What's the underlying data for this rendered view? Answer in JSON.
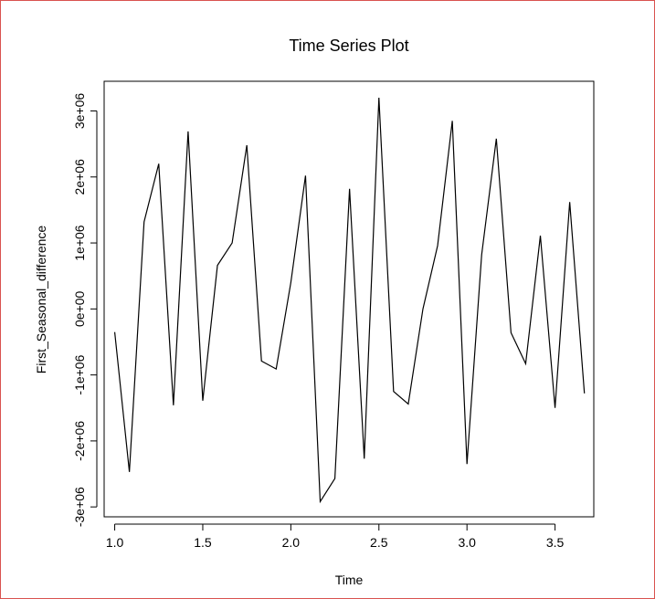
{
  "chart_data": {
    "type": "line",
    "title": "Time Series Plot",
    "xlabel": "Time",
    "ylabel": "First_Seasonal_difference",
    "xlim": [
      0.94,
      3.72
    ],
    "ylim": [
      -3150000,
      3450000
    ],
    "x_ticks": [
      {
        "value": 1.0,
        "label": "1.0"
      },
      {
        "value": 1.5,
        "label": "1.5"
      },
      {
        "value": 2.0,
        "label": "2.0"
      },
      {
        "value": 2.5,
        "label": "2.5"
      },
      {
        "value": 3.0,
        "label": "3.0"
      },
      {
        "value": 3.5,
        "label": "3.5"
      }
    ],
    "y_ticks": [
      {
        "value": -3000000,
        "label": "-3e+06"
      },
      {
        "value": -2000000,
        "label": "-2e+06"
      },
      {
        "value": -1000000,
        "label": "-1e+06"
      },
      {
        "value": 0,
        "label": "0e+00"
      },
      {
        "value": 1000000,
        "label": "1e+06"
      },
      {
        "value": 2000000,
        "label": "2e+06"
      },
      {
        "value": 3000000,
        "label": "3e+06"
      }
    ],
    "grid": false,
    "line_color": "#000000",
    "series": [
      {
        "x": [
          1.0,
          1.0833,
          1.1667,
          1.25,
          1.3333,
          1.4167,
          1.5,
          1.5833,
          1.6667,
          1.75,
          1.8333,
          1.9167,
          2.0,
          2.0833,
          2.1667,
          2.25,
          2.3333,
          2.4167,
          2.5,
          2.5833,
          2.6667,
          2.75,
          2.8333,
          2.9167,
          3.0,
          3.0833,
          3.1667,
          3.25,
          3.3333,
          3.4167,
          3.5,
          3.5833,
          3.6667
        ],
        "values": [
          -350000,
          -2470000,
          1320000,
          2200000,
          -1460000,
          2690000,
          -1390000,
          660000,
          1000000,
          2480000,
          -790000,
          -910000,
          400000,
          2020000,
          -2920000,
          -2570000,
          1820000,
          -2270000,
          3200000,
          -1250000,
          -1440000,
          0,
          960000,
          2850000,
          -2350000,
          820000,
          2580000,
          -360000,
          -830000,
          1110000,
          -1500000,
          1620000,
          -1280000
        ]
      }
    ]
  }
}
